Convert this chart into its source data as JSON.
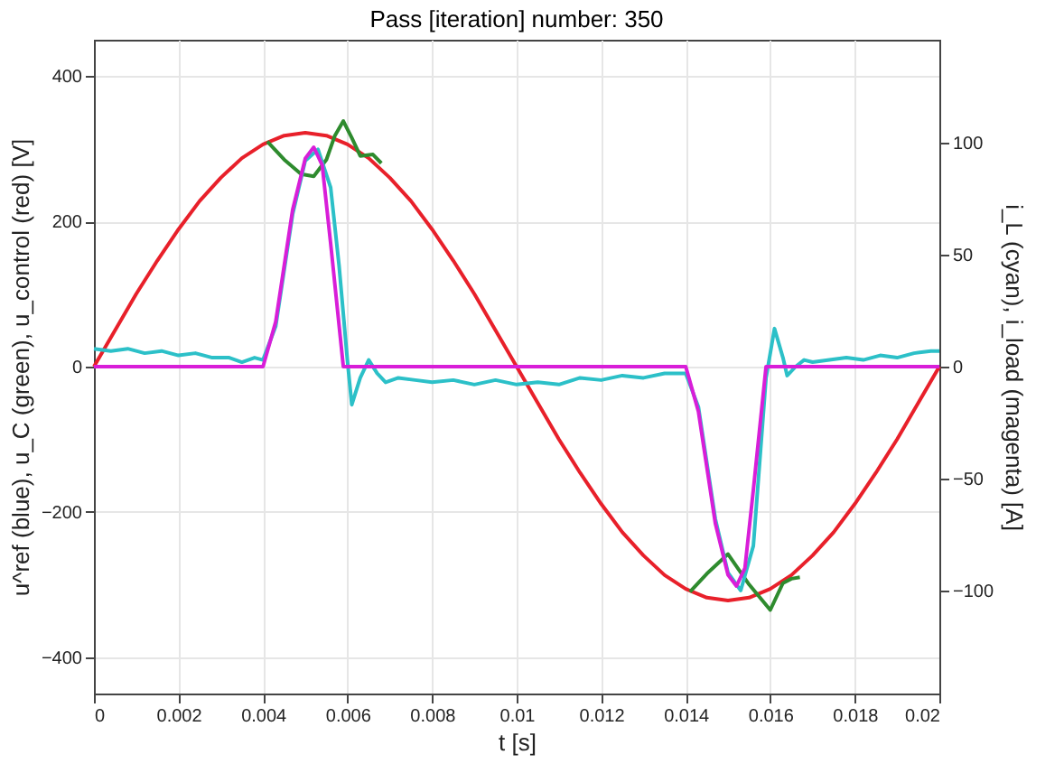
{
  "chart_data": {
    "type": "line",
    "title": "Pass [iteration] number: 350",
    "xlabel": "t [s]",
    "ylabel": "u^ref (blue),  u_C (green),  u_control (red) [V]",
    "y2label": "i_L (cyan),  i_load (magenta) [A]",
    "xlim": [
      0,
      0.02
    ],
    "xticks": [
      0,
      0.002,
      0.004,
      0.006,
      0.008,
      0.01,
      0.012,
      0.014,
      0.016,
      0.018,
      0.02
    ],
    "ylim": [
      -450,
      450
    ],
    "yticks": [
      -400,
      -200,
      0,
      200,
      400
    ],
    "y2lim": [
      -146,
      146
    ],
    "y2ticks": [
      -100,
      -50,
      0,
      50,
      100
    ],
    "grid": true,
    "marker": "none",
    "line_style": "solid",
    "series": [
      {
        "color": "#e8202a",
        "x": [
          0,
          0.0005,
          0.001,
          0.0015,
          0.002,
          0.0025,
          0.003,
          0.0035,
          0.004,
          0.0045,
          0.005,
          0.0055,
          0.006,
          0.0065,
          0.007,
          0.0075,
          0.008,
          0.0085,
          0.009,
          0.0095,
          0.01,
          0.0105,
          0.011,
          0.0115,
          0.012,
          0.0125,
          0.013,
          0.0135,
          0.014,
          0.0145,
          0.015,
          0.0155,
          0.016,
          0.0165,
          0.017,
          0.0175,
          0.018,
          0.0185,
          0.019,
          0.0195,
          0.02
        ],
        "values": [
          0,
          50,
          100,
          146,
          189,
          228,
          260,
          287,
          306,
          318,
          322,
          318,
          306,
          287,
          260,
          228,
          189,
          146,
          100,
          50,
          0,
          -50,
          -100,
          -146,
          -189,
          -228,
          -260,
          -287,
          -306,
          -318,
          -322,
          -318,
          -306,
          -287,
          -260,
          -228,
          -189,
          -146,
          -100,
          -50,
          0
        ]
      },
      {
        "color": "#2e8b2e",
        "x": [
          0.0041,
          0.0045,
          0.0049,
          0.0052,
          0.0055,
          0.0057,
          0.0059,
          0.0061,
          0.0063,
          0.0066,
          0.0068,
          0.01,
          0.0141,
          0.0145,
          0.015,
          0.0155,
          0.016,
          0.0163,
          0.0165,
          0.0167
        ],
        "values": [
          310,
          285,
          265,
          262,
          285,
          318,
          338,
          315,
          290,
          292,
          280,
          null,
          -310,
          -285,
          -258,
          -300,
          -335,
          -298,
          -292,
          -290
        ]
      },
      {
        "color": "#2cc0c8",
        "axis": "y2",
        "x": [
          0,
          0.0004,
          0.0008,
          0.0012,
          0.0016,
          0.002,
          0.0024,
          0.0028,
          0.0032,
          0.0035,
          0.0038,
          0.004,
          0.0043,
          0.0047,
          0.005,
          0.0053,
          0.0056,
          0.0058,
          0.006,
          0.0061,
          0.0063,
          0.0065,
          0.0067,
          0.0069,
          0.0072,
          0.0076,
          0.008,
          0.0085,
          0.009,
          0.0095,
          0.01,
          0.0105,
          0.011,
          0.0115,
          0.012,
          0.0125,
          0.013,
          0.0135,
          0.014,
          0.0143,
          0.0147,
          0.015,
          0.0153,
          0.0156,
          0.0159,
          0.0161,
          0.0163,
          0.0164,
          0.0166,
          0.0168,
          0.017,
          0.0174,
          0.0178,
          0.0182,
          0.0186,
          0.019,
          0.0194,
          0.0198,
          0.02
        ],
        "values": [
          8,
          7,
          8,
          6,
          7,
          5,
          6,
          4,
          4,
          2,
          4,
          3,
          18,
          68,
          92,
          97,
          80,
          45,
          2,
          -17,
          -5,
          3,
          -3,
          -7,
          -5,
          -6,
          -7,
          -6,
          -8,
          -6,
          -8,
          -7,
          -8,
          -5,
          -6,
          -4,
          -5,
          -3,
          -3,
          -18,
          -68,
          -92,
          -100,
          -80,
          -5,
          17,
          4,
          -4,
          0,
          3,
          2,
          3,
          4,
          3,
          5,
          4,
          6,
          7,
          7
        ]
      },
      {
        "color": "#d81ed8",
        "axis": "y2",
        "x": [
          0,
          0.004,
          0.0043,
          0.0047,
          0.005,
          0.0052,
          0.0054,
          0.0056,
          0.0059,
          0.014,
          0.0143,
          0.0147,
          0.015,
          0.0152,
          0.0154,
          0.0156,
          0.0159,
          0.02
        ],
        "values": [
          0,
          0,
          20,
          70,
          93,
          98,
          90,
          55,
          0,
          0,
          -20,
          -70,
          -93,
          -98,
          -90,
          -55,
          0,
          0
        ]
      }
    ]
  }
}
